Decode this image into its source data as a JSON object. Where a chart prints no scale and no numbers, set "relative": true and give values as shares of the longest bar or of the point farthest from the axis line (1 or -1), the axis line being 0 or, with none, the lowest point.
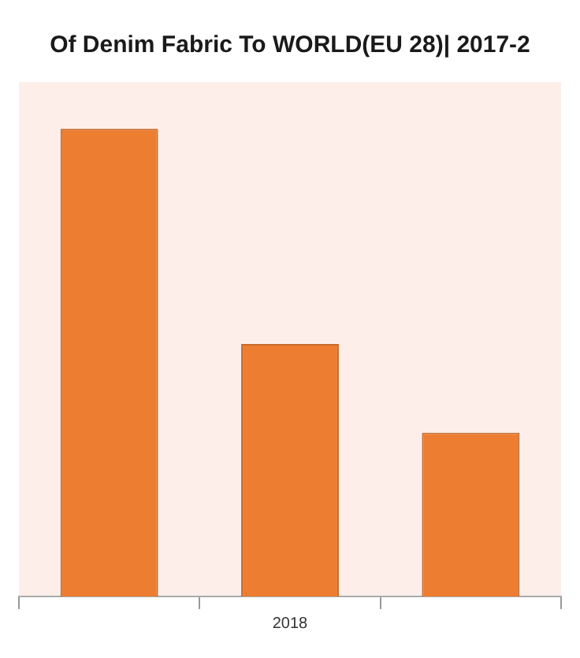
{
  "chart_data": {
    "type": "bar",
    "title": "Of Denim Fabric To WORLD(EU 28)| 2017-2",
    "categories": [
      null,
      "2018",
      null
    ],
    "values": [
      1,
      0.54,
      0.35
    ],
    "color": "#ed7d31",
    "relative": true,
    "legend": false
  }
}
